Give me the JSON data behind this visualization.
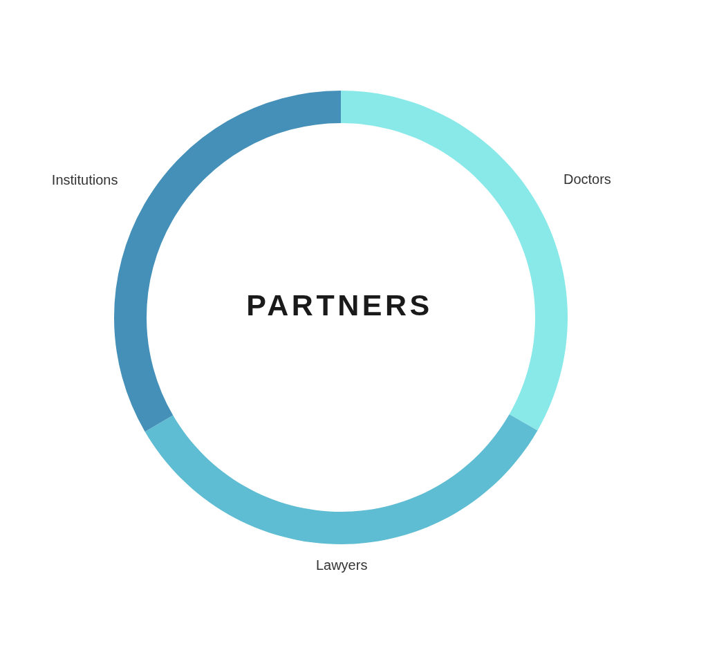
{
  "chart_data": {
    "type": "donut",
    "title": "PARTNERS",
    "categories": [
      "Doctors",
      "Lawyers",
      "Institutions"
    ],
    "values": [
      33.3,
      33.3,
      33.4
    ],
    "colors": [
      "#88e9e8",
      "#5fbdd3",
      "#4590b8"
    ]
  }
}
